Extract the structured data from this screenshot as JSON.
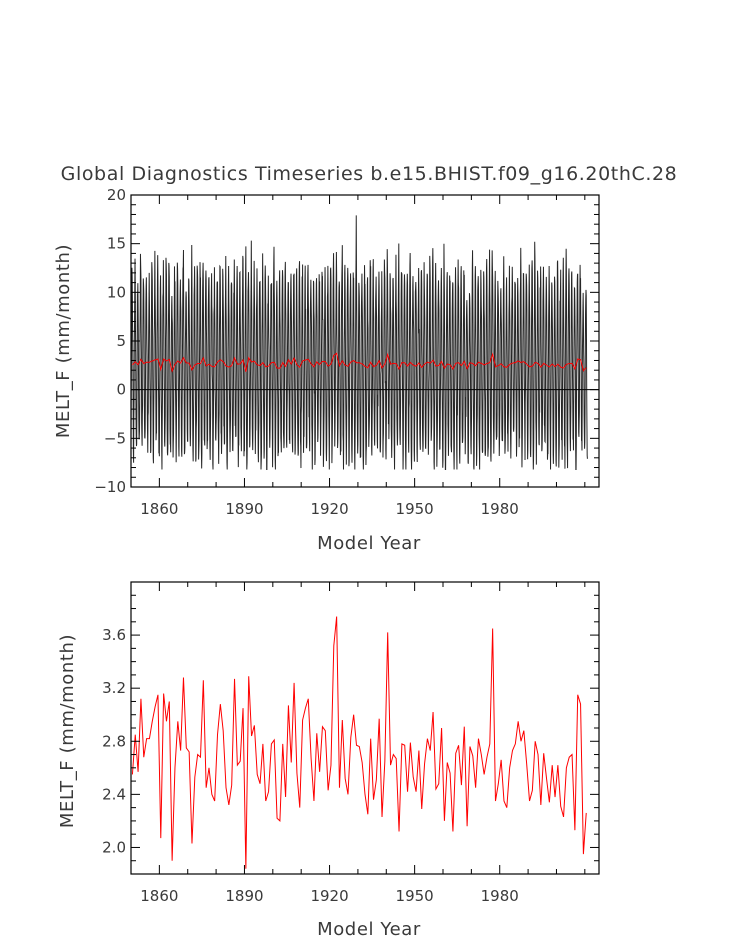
{
  "chart_data": [
    {
      "type": "line",
      "title": "Global Diagnostics Timeseries b.e15.BHIST.f09_g16.20thC.28",
      "xlabel": "Model Year",
      "ylabel": "MELT_F (mm/month)",
      "xlim": [
        1850,
        2015
      ],
      "ylim": [
        -10,
        20
      ],
      "x_ticks": [
        1860,
        1890,
        1920,
        1950,
        1980
      ],
      "x_tick_labels": [
        "1860",
        "1890",
        "1920",
        "1950",
        "1980"
      ],
      "y_ticks": [
        -10,
        -5,
        0,
        5,
        10,
        15,
        20
      ],
      "y_tick_labels": [
        "−10",
        "−5",
        "0",
        "5",
        "10",
        "15",
        "20"
      ],
      "series": [
        {
          "color": "#000000",
          "resolution": "monthly",
          "typical_max": 13,
          "typical_min": -5.5,
          "peak_max": 18.8,
          "peak_min": -8.2
        },
        {
          "color": "#ff0000",
          "resolution": "annual",
          "values_ref": "annual_mean"
        }
      ],
      "grid": false,
      "reference_line": 0
    },
    {
      "type": "line",
      "title": "",
      "xlabel": "Model Year",
      "ylabel": "MELT_F (mm/month)",
      "xlim": [
        1850,
        2015
      ],
      "ylim": [
        1.8,
        4.0
      ],
      "x_ticks": [
        1860,
        1890,
        1920,
        1950,
        1980
      ],
      "x_tick_labels": [
        "1860",
        "1890",
        "1920",
        "1950",
        "1980"
      ],
      "y_ticks": [
        2.0,
        2.4,
        2.8,
        3.2,
        3.6
      ],
      "y_tick_labels": [
        "2.0",
        "2.4",
        "2.8",
        "3.2",
        "3.6"
      ],
      "series": [
        {
          "color": "#ff0000",
          "values_ref": "annual_mean"
        }
      ],
      "grid": false
    }
  ],
  "annual_mean": {
    "x_start": 1850,
    "x_step": 1,
    "values": [
      2.55,
      2.85,
      2.57,
      3.12,
      2.68,
      2.82,
      2.82,
      2.95,
      3.06,
      3.15,
      2.07,
      3.16,
      2.95,
      3.1,
      1.9,
      2.6,
      2.95,
      2.73,
      3.28,
      2.75,
      2.72,
      2.03,
      2.53,
      2.7,
      2.68,
      3.26,
      2.45,
      2.6,
      2.4,
      2.35,
      2.85,
      3.08,
      2.88,
      2.45,
      2.32,
      2.47,
      3.27,
      2.62,
      2.65,
      3.05,
      1.84,
      3.29,
      2.84,
      2.92,
      2.55,
      2.48,
      2.78,
      2.35,
      2.42,
      2.78,
      2.81,
      2.22,
      2.2,
      2.78,
      2.38,
      3.07,
      2.64,
      3.24,
      2.56,
      2.3,
      2.96,
      3.05,
      3.12,
      2.67,
      2.35,
      2.86,
      2.57,
      2.91,
      2.88,
      2.43,
      2.62,
      3.52,
      3.74,
      2.45,
      2.96,
      2.52,
      2.4,
      2.83,
      3.0,
      2.77,
      2.76,
      2.64,
      2.4,
      2.25,
      2.82,
      2.36,
      2.51,
      2.97,
      2.23,
      2.65,
      3.62,
      2.62,
      2.7,
      2.67,
      2.12,
      2.78,
      2.77,
      2.42,
      2.79,
      2.53,
      2.42,
      2.73,
      2.29,
      2.63,
      2.82,
      2.73,
      3.02,
      2.44,
      2.48,
      2.9,
      2.2,
      2.64,
      2.56,
      2.12,
      2.71,
      2.77,
      2.47,
      2.91,
      2.16,
      2.76,
      2.69,
      2.45,
      2.82,
      2.7,
      2.55,
      2.68,
      2.78,
      3.65,
      2.35,
      2.48,
      2.66,
      2.35,
      2.3,
      2.6,
      2.73,
      2.78,
      2.95,
      2.8,
      2.88,
      2.63,
      2.35,
      2.43,
      2.8,
      2.7,
      2.32,
      2.71,
      2.52,
      2.34,
      2.62,
      2.38,
      2.62,
      2.31,
      2.23,
      2.6,
      2.68,
      2.7,
      2.13,
      3.15,
      3.08,
      1.95,
      2.26
    ]
  }
}
